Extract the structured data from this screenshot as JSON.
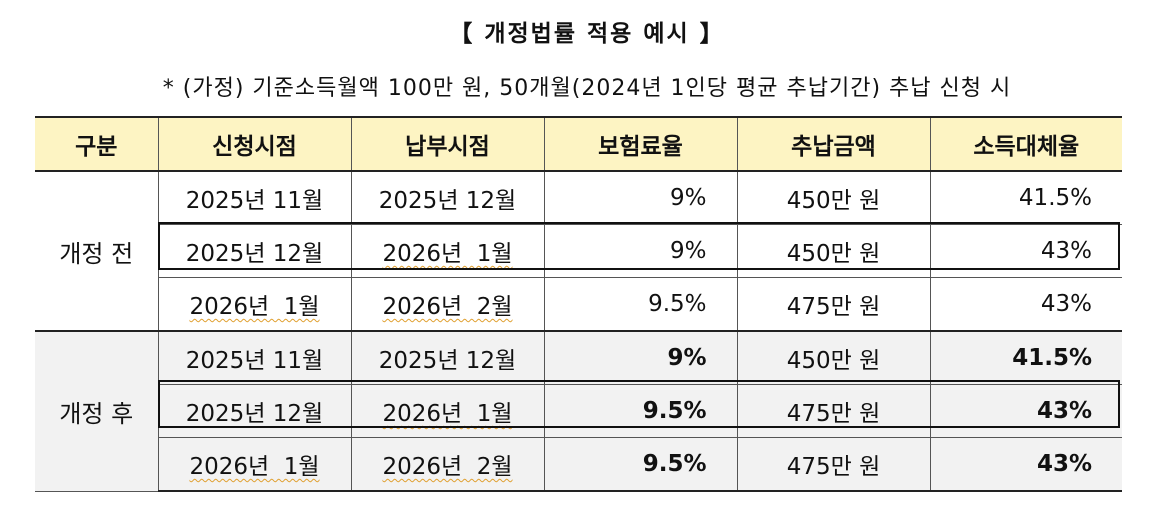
{
  "title": "【 개정법률 적용 예시 】",
  "note": "* (가정) 기준소득월액 100만 원, 50개월(2024년 1인당 평균 추납기간) 추납 신청 시",
  "headers": [
    "구분",
    "신청시점",
    "납부시점",
    "보험료율",
    "추납금액",
    "소득대체율"
  ],
  "groups": [
    {
      "label": "개정 전",
      "rows": [
        {
          "apply": "2025년 11월",
          "pay": "2025년 12월",
          "rate": "9%",
          "amount": "450만 원",
          "replace": "41.5%"
        },
        {
          "apply": "2025년 12월",
          "pay": "2026년  1월",
          "rate": "9%",
          "amount": "450만 원",
          "replace": "43%"
        },
        {
          "apply": "2026년  1월",
          "pay": "2026년  2월",
          "rate": "9.5%",
          "amount": "475만 원",
          "replace": "43%"
        }
      ]
    },
    {
      "label": "개정 후",
      "rows": [
        {
          "apply": "2025년 11월",
          "pay": "2025년 12월",
          "rate": "9%",
          "amount": "450만 원",
          "replace": "41.5%"
        },
        {
          "apply": "2025년 12월",
          "pay": "2026년  1월",
          "rate": "9.5%",
          "amount": "475만 원",
          "replace": "43%"
        },
        {
          "apply": "2026년  1월",
          "pay": "2026년  2월",
          "rate": "9.5%",
          "amount": "475만 원",
          "replace": "43%"
        }
      ]
    }
  ]
}
